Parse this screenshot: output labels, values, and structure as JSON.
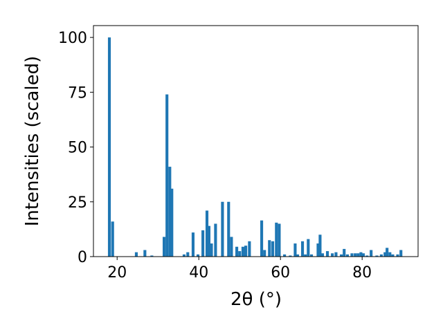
{
  "chart_data": {
    "type": "bar",
    "xlabel": "2θ (°)",
    "ylabel": "Intensities (scaled)",
    "color": "#1f77b4",
    "x": [
      18.1,
      18.9,
      24.7,
      26.8,
      28.5,
      31.5,
      32.2,
      32.9,
      33.4,
      36.4,
      37.3,
      38.6,
      39.8,
      41.0,
      42.0,
      42.5,
      43.1,
      44.1,
      45.8,
      47.3,
      48.0,
      49.3,
      50.0,
      50.8,
      51.5,
      52.4,
      55.4,
      56.1,
      57.3,
      58.1,
      59.0,
      59.7,
      61.0,
      62.4,
      63.6,
      64.2,
      65.4,
      66.1,
      66.8,
      67.6,
      69.2,
      69.7,
      70.3,
      71.5,
      72.7,
      73.6,
      74.9,
      75.6,
      76.4,
      77.5,
      78.3,
      79.0,
      79.7,
      80.3,
      81.2,
      82.2,
      83.6,
      84.7,
      85.6,
      86.1,
      86.8,
      87.5,
      88.7,
      89.5
    ],
    "values": [
      100,
      16,
      2,
      3,
      0.5,
      9,
      74,
      41,
      31,
      1,
      2,
      11,
      1,
      12,
      21,
      14,
      6,
      15,
      25,
      25,
      9,
      4.5,
      2.5,
      4.5,
      5,
      7,
      16.5,
      3,
      7.5,
      7,
      15.5,
      15,
      1,
      0.5,
      6,
      1,
      7,
      1,
      8,
      1,
      6,
      10,
      1.5,
      2.5,
      1.5,
      2,
      1,
      3.5,
      1,
      1.5,
      1.5,
      1.5,
      2,
      1.5,
      0.5,
      3,
      0.5,
      1,
      2,
      4,
      2,
      1,
      1,
      3
    ],
    "xlim": [
      14.2,
      93.7
    ],
    "ylim": [
      0,
      105.4
    ],
    "xticks": [
      20,
      40,
      60,
      80
    ],
    "yticks": [
      0,
      25,
      50,
      75,
      100
    ]
  }
}
